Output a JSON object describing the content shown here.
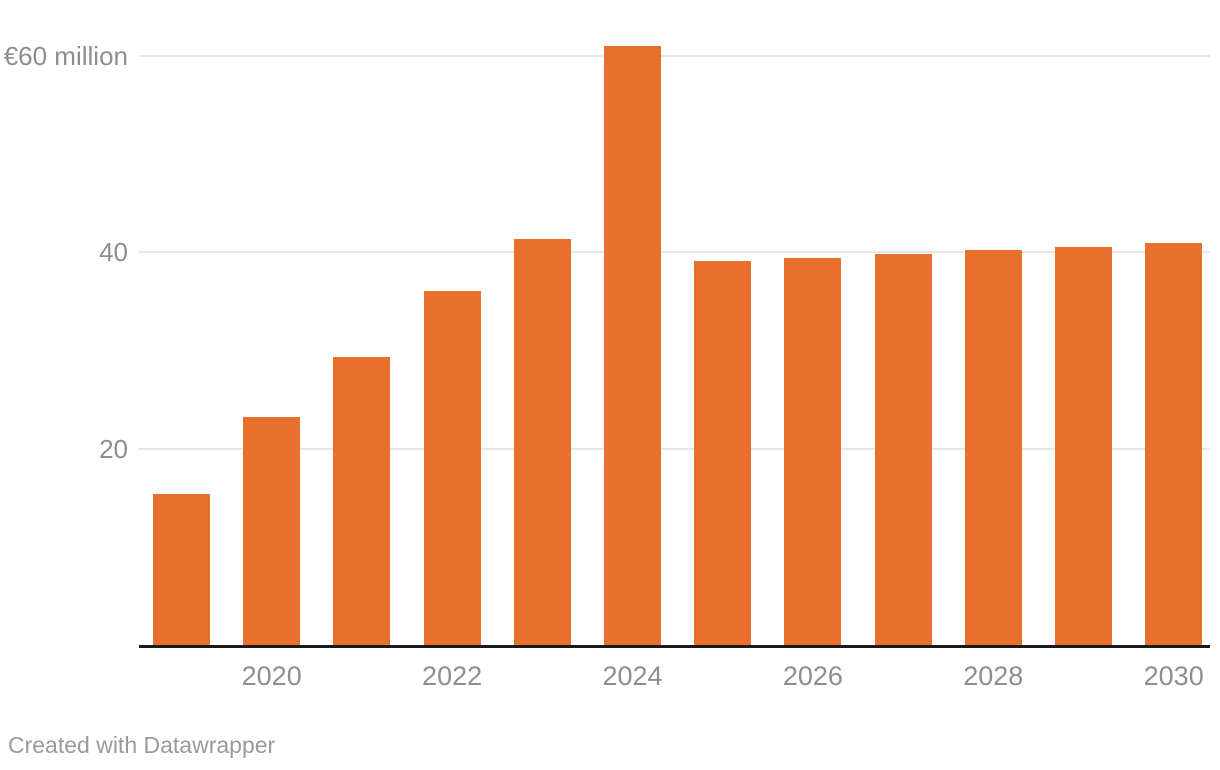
{
  "chart_data": {
    "type": "bar",
    "categories": [
      "2019",
      "2020",
      "2021",
      "2022",
      "2023",
      "2024",
      "2025",
      "2026",
      "2027",
      "2028",
      "2029",
      "2030"
    ],
    "values": [
      15.4,
      23.3,
      29.4,
      36.1,
      41.4,
      61,
      39.1,
      39.4,
      39.8,
      40.2,
      40.6,
      41
    ],
    "title": "",
    "xlabel": "",
    "ylabel": "",
    "ylim": [
      0,
      62
    ],
    "grid": "horizontal",
    "legend": "none",
    "y_ticks": [
      {
        "value": 60,
        "label": "€60 million"
      },
      {
        "value": 40,
        "label": "40"
      },
      {
        "value": 20,
        "label": "20"
      }
    ],
    "x_tick_labels": [
      "2020",
      "2022",
      "2024",
      "2026",
      "2028",
      "2030"
    ],
    "bar_color": "#E8702D"
  },
  "colors": {
    "bar": "#E8702D",
    "gridline": "#E6E6E6",
    "axis_line": "#1A1A1A",
    "axis_text": "#8E8E8E",
    "credit_text": "#9A9A9A",
    "background": "#FFFFFF"
  },
  "footer": {
    "credit": "Created with Datawrapper"
  }
}
